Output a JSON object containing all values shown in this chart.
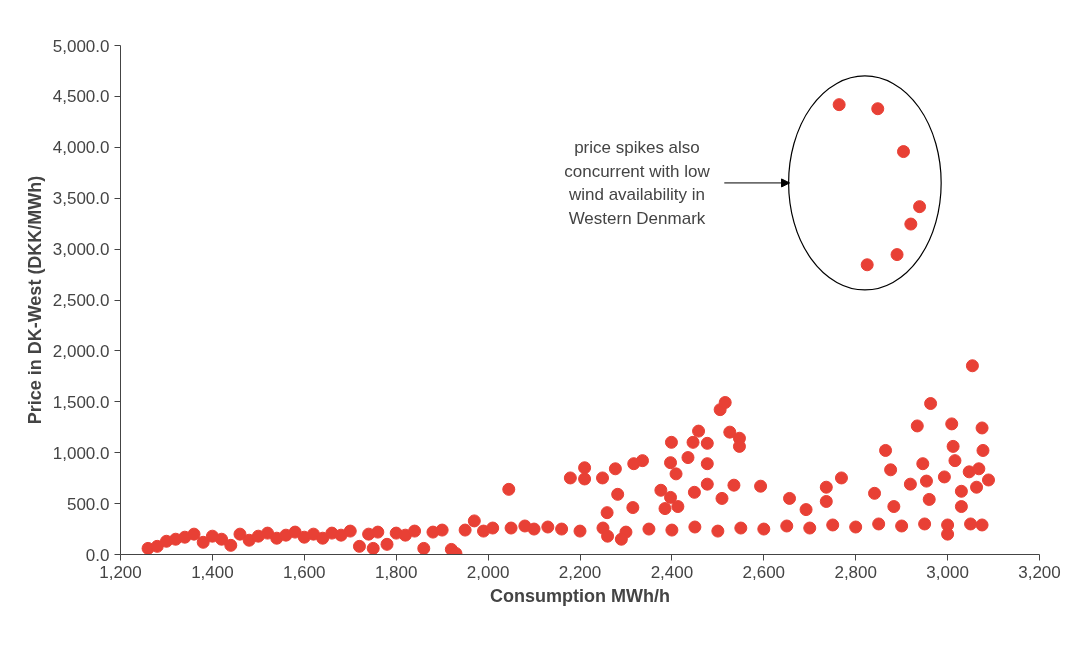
{
  "chart_data": {
    "type": "scatter",
    "xlabel": "Consumption MWh/h",
    "ylabel": "Price in DK-West (DKK/MWh)",
    "xlim": [
      1200,
      3200
    ],
    "ylim": [
      0,
      5000
    ],
    "xticks": [
      {
        "value": 1200,
        "label": "1,200"
      },
      {
        "value": 1400,
        "label": "1,400"
      },
      {
        "value": 1600,
        "label": "1,600"
      },
      {
        "value": 1800,
        "label": "1,800"
      },
      {
        "value": 2000,
        "label": "2,000"
      },
      {
        "value": 2200,
        "label": "2,200"
      },
      {
        "value": 2400,
        "label": "2,400"
      },
      {
        "value": 2600,
        "label": "2,600"
      },
      {
        "value": 2800,
        "label": "2,800"
      },
      {
        "value": 3000,
        "label": "3,000"
      },
      {
        "value": 3200,
        "label": "3,200"
      }
    ],
    "yticks": [
      {
        "value": 0,
        "label": "0.0"
      },
      {
        "value": 500,
        "label": "500.0"
      },
      {
        "value": 1000,
        "label": "1,000.0"
      },
      {
        "value": 1500,
        "label": "1,500.0"
      },
      {
        "value": 2000,
        "label": "2,000.0"
      },
      {
        "value": 2500,
        "label": "2,500.0"
      },
      {
        "value": 3000,
        "label": "3,000.0"
      },
      {
        "value": 3500,
        "label": "3,500.0"
      },
      {
        "value": 4000,
        "label": "4,000.0"
      },
      {
        "value": 4500,
        "label": "4,500.0"
      },
      {
        "value": 5000,
        "label": "5,000.0"
      }
    ],
    "grid": false,
    "marker": "circle",
    "annotations": [
      "price spikes also concurrent with low wind availability in Western Denmark"
    ],
    "series": [
      {
        "color": "#e84035",
        "x": [
          1260,
          1280,
          1300,
          1320,
          1340,
          1360,
          1380,
          1400,
          1420,
          1440,
          1460,
          1480,
          1500,
          1520,
          1540,
          1560,
          1580,
          1600,
          1620,
          1640,
          1660,
          1680,
          1700,
          1720,
          1740,
          1750,
          1760,
          1780,
          1800,
          1820,
          1840,
          1860,
          1880,
          1900,
          1920,
          1930,
          1950,
          1970,
          1990,
          2010,
          2045,
          2050,
          2080,
          2100,
          2130,
          2160,
          2200,
          2250,
          2300,
          2350,
          2400,
          2450,
          2500,
          2550,
          2600,
          2650,
          2700,
          2750,
          2800,
          2850,
          2900,
          2950,
          3000,
          3050,
          3075,
          2290,
          2260,
          3000,
          2179,
          2210,
          2210,
          2249,
          2277,
          2282,
          2317,
          2336,
          2399,
          2397,
          2435,
          2458,
          2446,
          2477,
          2477,
          2376,
          2409,
          2397,
          2413,
          2449,
          2477,
          2385,
          2505,
          2516,
          2526,
          2547,
          2547,
          2535,
          2509,
          2593,
          2656,
          2736,
          2769,
          2736,
          2841,
          2865,
          2876,
          2934,
          2963,
          2946,
          2919,
          2954,
          3009,
          3012,
          3016,
          2993,
          3054,
          3075,
          3077,
          3089,
          3047,
          3068,
          3063,
          3030,
          3030,
          2960,
          2883,
          2692,
          2315,
          2259,
          2764,
          2848,
          2904,
          2939,
          2920,
          2890,
          2825
        ],
        "values": [
          60,
          80,
          130,
          150,
          170,
          200,
          120,
          180,
          150,
          90,
          200,
          140,
          180,
          210,
          160,
          190,
          220,
          170,
          200,
          160,
          210,
          190,
          230,
          80,
          200,
          60,
          220,
          100,
          210,
          190,
          230,
          60,
          220,
          240,
          50,
          10,
          240,
          330,
          230,
          260,
          640,
          260,
          280,
          250,
          270,
          250,
          230,
          260,
          220,
          250,
          240,
          270,
          230,
          260,
          250,
          280,
          260,
          290,
          270,
          300,
          280,
          300,
          290,
          300,
          290,
          150,
          180,
          200,
          752,
          852,
          742,
          752,
          842,
          591,
          892,
          922,
          1102,
          902,
          952,
          1212,
          1102,
          1092,
          892,
          631,
          792,
          561,
          471,
          611,
          691,
          451,
          1423,
          1493,
          1202,
          1142,
          1062,
          681,
          551,
          671,
          551,
          661,
          752,
          521,
          601,
          1022,
          832,
          1263,
          1483,
          892,
          691,
          721,
          1283,
          1062,
          922,
          762,
          1854,
          1243,
          1022,
          732,
          812,
          842,
          661,
          621,
          471,
          541,
          471,
          441,
          461,
          411,
          4419,
          4379,
          3958,
          3417,
          3246,
          2946,
          2846
        ]
      }
    ]
  }
}
